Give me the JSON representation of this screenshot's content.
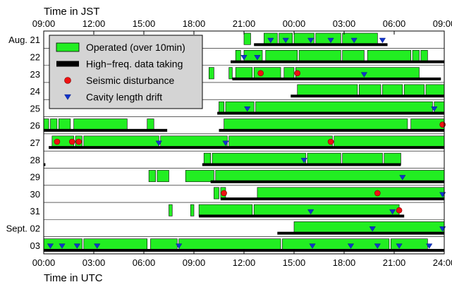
{
  "chart_data": {
    "type": "timeline",
    "top_axis_title": "Time in JST",
    "bottom_axis_title": "Time in UTC",
    "top_ticks": [
      "09:00",
      "12:00",
      "15:00",
      "18:00",
      "21:00",
      "00:00",
      "03:00",
      "06:00",
      "09:00"
    ],
    "bottom_ticks": [
      "00:00",
      "03:00",
      "06:00",
      "09:00",
      "12:00",
      "15:00",
      "18:00",
      "21:00",
      "24:00"
    ],
    "x_range_utc_hours": [
      0,
      24
    ],
    "colors": {
      "operated": "#22ee22",
      "operated_edge": "#000000",
      "high_freq": "#000000",
      "seismic": "#ee1111",
      "drift": "#1133cc",
      "legend_bg": "#d4d4d4"
    },
    "legend": {
      "operated": "Operated (over 10min)",
      "high_freq": "High−freq. data taking",
      "seismic": "Seismic disturbance",
      "drift": "Cavity length drift"
    },
    "rows": [
      {
        "label": "Aug. 21",
        "operated": [
          [
            12.0,
            12.4
          ],
          [
            13.2,
            14.0
          ],
          [
            14.1,
            14.9
          ],
          [
            15.0,
            16.2
          ],
          [
            16.3,
            17.8
          ],
          [
            17.9,
            20.0
          ]
        ],
        "high_freq": [
          [
            12.6,
            20.6
          ]
        ],
        "seismic": [],
        "drift": [
          13.6,
          14.5,
          16.0,
          17.2,
          18.6,
          20.3
        ]
      },
      {
        "label": "22",
        "operated": [
          [
            11.5,
            11.8
          ],
          [
            12.0,
            13.1
          ],
          [
            13.3,
            15.2
          ],
          [
            15.3,
            17.8
          ],
          [
            17.9,
            19.2
          ],
          [
            19.4,
            22.0
          ],
          [
            22.1,
            22.5
          ],
          [
            22.6,
            23.0
          ]
        ],
        "high_freq": [
          [
            11.2,
            24.0
          ]
        ],
        "seismic": [],
        "drift": [
          12.0,
          12.8
        ]
      },
      {
        "label": "23",
        "operated": [
          [
            9.9,
            10.2
          ],
          [
            11.1,
            11.3
          ],
          [
            11.5,
            12.5
          ],
          [
            12.6,
            14.2
          ],
          [
            14.4,
            15.0
          ],
          [
            15.1,
            22.5
          ]
        ],
        "high_freq": [
          [
            11.3,
            23.8
          ]
        ],
        "seismic": [
          13.0,
          15.2
        ],
        "drift": [
          19.2
        ]
      },
      {
        "label": "24",
        "operated": [
          [
            15.2,
            18.8
          ],
          [
            18.9,
            20.2
          ],
          [
            20.3,
            21.5
          ],
          [
            21.6,
            22.8
          ],
          [
            22.9,
            24.0
          ]
        ],
        "high_freq": [
          [
            14.8,
            24.0
          ]
        ],
        "seismic": [],
        "drift": []
      },
      {
        "label": "25",
        "operated": [
          [
            10.5,
            10.8
          ],
          [
            10.9,
            12.6
          ],
          [
            12.7,
            23.3
          ],
          [
            23.4,
            24.0
          ]
        ],
        "high_freq": [
          [
            10.4,
            24.0
          ]
        ],
        "seismic": [],
        "drift": [
          12.2,
          23.4
        ]
      },
      {
        "label": "26",
        "operated": [
          [
            0.0,
            0.3
          ],
          [
            0.4,
            0.8
          ],
          [
            0.9,
            1.6
          ],
          [
            1.8,
            5.0
          ],
          [
            6.2,
            6.6
          ],
          [
            10.8,
            21.8
          ],
          [
            22.0,
            24.0
          ]
        ],
        "high_freq": [
          [
            0.0,
            7.4
          ],
          [
            10.5,
            24.0
          ]
        ],
        "seismic": [
          23.9
        ],
        "drift": []
      },
      {
        "label": "27",
        "operated": [
          [
            0.5,
            1.8
          ],
          [
            1.9,
            2.3
          ],
          [
            2.4,
            6.9
          ],
          [
            7.0,
            11.0
          ],
          [
            11.1,
            17.3
          ],
          [
            17.4,
            24.0
          ]
        ],
        "high_freq": [
          [
            0.3,
            24.0
          ]
        ],
        "seismic": [
          0.8,
          1.7,
          2.1,
          17.2
        ],
        "drift": [
          6.9,
          10.9
        ]
      },
      {
        "label": "28",
        "operated": [
          [
            9.6,
            10.0
          ],
          [
            10.1,
            15.7
          ],
          [
            15.8,
            17.8
          ],
          [
            17.9,
            20.3
          ],
          [
            20.4,
            21.4
          ]
        ],
        "high_freq": [
          [
            0.0,
            0.1
          ],
          [
            9.5,
            21.4
          ]
        ],
        "seismic": [],
        "drift": [
          15.6
        ]
      },
      {
        "label": "29",
        "operated": [
          [
            6.3,
            6.7
          ],
          [
            6.8,
            7.5
          ],
          [
            8.5,
            10.2
          ],
          [
            10.3,
            24.0
          ]
        ],
        "high_freq": [
          [
            10.0,
            24.0
          ]
        ],
        "seismic": [],
        "drift": [
          21.5
        ]
      },
      {
        "label": "30",
        "operated": [
          [
            10.2,
            10.5
          ],
          [
            10.6,
            10.9
          ],
          [
            12.8,
            24.0
          ]
        ],
        "high_freq": [
          [
            10.6,
            24.0
          ]
        ],
        "seismic": [
          10.8,
          20.0
        ],
        "drift": [
          23.9
        ]
      },
      {
        "label": "31",
        "operated": [
          [
            7.5,
            7.7
          ],
          [
            8.8,
            9.0
          ],
          [
            9.3,
            12.5
          ],
          [
            12.6,
            21.3
          ]
        ],
        "high_freq": [
          [
            9.3,
            21.6
          ]
        ],
        "seismic": [
          21.3
        ],
        "drift": [
          16.0,
          20.9
        ]
      },
      {
        "label": "Sept. 02",
        "operated": [
          [
            15.0,
            24.0
          ]
        ],
        "high_freq": [
          [
            14.0,
            24.0
          ]
        ],
        "seismic": [],
        "drift": [
          19.7,
          23.9
        ]
      },
      {
        "label": "03",
        "operated": [
          [
            0.0,
            2.3
          ],
          [
            2.4,
            6.2
          ],
          [
            6.4,
            8.0
          ],
          [
            8.1,
            14.2
          ],
          [
            14.3,
            20.7
          ],
          [
            20.8,
            23.0
          ]
        ],
        "high_freq": [
          [
            0.0,
            24.0
          ]
        ],
        "seismic": [],
        "drift": [
          0.4,
          1.1,
          2.0,
          3.2,
          8.1,
          16.1,
          18.4,
          20.0,
          21.3,
          23.1
        ]
      }
    ]
  }
}
